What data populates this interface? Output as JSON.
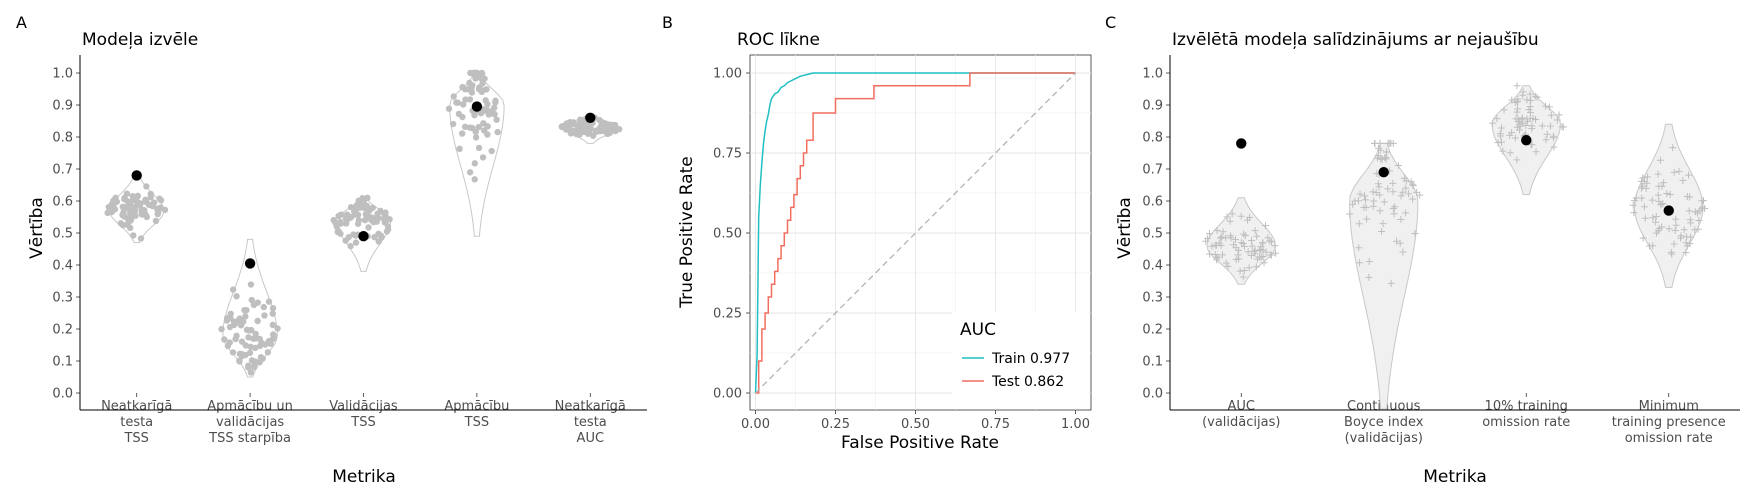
{
  "chart_data": [
    {
      "panel": "A",
      "type": "scatter",
      "title": "Modeļa izvēle",
      "xlabel": "Metrika",
      "ylabel": "Vērtība",
      "ylim": [
        0,
        1
      ],
      "yticks": [
        "0.0",
        "0.1",
        "0.2",
        "0.3",
        "0.4",
        "0.5",
        "0.6",
        "0.7",
        "0.8",
        "0.9",
        "1.0"
      ],
      "grid": false,
      "categories": [
        [
          "Neatkarīgā",
          "testa",
          "TSS"
        ],
        [
          "Apmācību un",
          "validācijas",
          "TSS starpība"
        ],
        [
          "Validācijas",
          "TSS"
        ],
        [
          "Apmācību",
          "TSS"
        ],
        [
          "Neatkarīgā",
          "testa",
          "AUC"
        ]
      ],
      "distributions": [
        {
          "min": 0.47,
          "max": 0.68,
          "center": 0.57
        },
        {
          "min": 0.05,
          "max": 0.48,
          "center": 0.18
        },
        {
          "min": 0.38,
          "max": 0.61,
          "center": 0.54
        },
        {
          "min": 0.49,
          "max": 1.0,
          "center": 0.9
        },
        {
          "min": 0.78,
          "max": 0.87,
          "center": 0.83
        }
      ],
      "selected_values": [
        0.68,
        0.405,
        0.49,
        0.895,
        0.86
      ],
      "point_color": "#bfbfbf",
      "selected_color": "#000000"
    },
    {
      "panel": "B",
      "type": "line",
      "title": "ROC līkne",
      "xlabel": "False Positive Rate",
      "ylabel": "True Positive Rate",
      "xlim": [
        0,
        1
      ],
      "ylim": [
        0,
        1
      ],
      "xticks": [
        "0.00",
        "0.25",
        "0.50",
        "0.75",
        "1.00"
      ],
      "yticks": [
        "0.00",
        "0.25",
        "0.50",
        "0.75",
        "1.00"
      ],
      "grid": true,
      "legend_title": "AUC",
      "legend_position": "bottom-right",
      "series": [
        {
          "name": "Train 0.977",
          "color": "#1fbfc4",
          "x": [
            0,
            0.005,
            0.01,
            0.015,
            0.02,
            0.025,
            0.03,
            0.035,
            0.04,
            0.045,
            0.05,
            0.06,
            0.07,
            0.08,
            0.09,
            0.1,
            0.11,
            0.12,
            0.13,
            0.14,
            0.16,
            0.18,
            0.2,
            0.3,
            0.5,
            0.7,
            1.0
          ],
          "y": [
            0,
            0.12,
            0.55,
            0.65,
            0.72,
            0.78,
            0.82,
            0.85,
            0.87,
            0.9,
            0.92,
            0.935,
            0.94,
            0.955,
            0.96,
            0.97,
            0.975,
            0.98,
            0.985,
            0.99,
            0.995,
            1.0,
            1.0,
            1.0,
            1.0,
            1.0,
            1.0
          ]
        },
        {
          "name": "Test 0.862",
          "color": "#f26d5f",
          "x": [
            0,
            0.01,
            0.01,
            0.02,
            0.02,
            0.03,
            0.03,
            0.04,
            0.04,
            0.05,
            0.05,
            0.06,
            0.06,
            0.07,
            0.07,
            0.08,
            0.08,
            0.09,
            0.09,
            0.1,
            0.1,
            0.11,
            0.11,
            0.12,
            0.12,
            0.13,
            0.13,
            0.14,
            0.14,
            0.15,
            0.15,
            0.16,
            0.16,
            0.18,
            0.18,
            0.25,
            0.25,
            0.37,
            0.37,
            0.67,
            0.67,
            1.0
          ],
          "y": [
            0,
            0,
            0.1,
            0.1,
            0.2,
            0.2,
            0.25,
            0.25,
            0.3,
            0.3,
            0.34,
            0.34,
            0.38,
            0.38,
            0.42,
            0.42,
            0.46,
            0.46,
            0.5,
            0.5,
            0.54,
            0.54,
            0.58,
            0.58,
            0.62,
            0.62,
            0.67,
            0.67,
            0.71,
            0.71,
            0.75,
            0.75,
            0.79,
            0.79,
            0.875,
            0.875,
            0.92,
            0.92,
            0.96,
            0.96,
            1.0,
            1.0
          ]
        },
        {
          "name": "",
          "color": "#b3b3b3",
          "dash": true,
          "x": [
            0,
            1
          ],
          "y": [
            0,
            1
          ]
        }
      ]
    },
    {
      "panel": "C",
      "type": "scatter",
      "title": "Izvēlētā modeļa salīdzinājums ar nejaušību",
      "xlabel": "Metrika",
      "ylabel": "Vērtība",
      "ylim": [
        0,
        1
      ],
      "yticks": [
        "0.0",
        "0.1",
        "0.2",
        "0.3",
        "0.4",
        "0.5",
        "0.6",
        "0.7",
        "0.8",
        "0.9",
        "1.0"
      ],
      "grid": false,
      "categories": [
        [
          "AUC",
          "(validācijas)"
        ],
        [
          "Continuous",
          "Boyce index",
          "(validācijas)"
        ],
        [
          "10% training",
          "omission rate"
        ],
        [
          "Minimum",
          "training presence",
          "omission rate"
        ]
      ],
      "distributions": [
        {
          "min": 0.34,
          "max": 0.61,
          "center": 0.46
        },
        {
          "min": -0.05,
          "max": 0.78,
          "center": 0.6
        },
        {
          "min": 0.62,
          "max": 0.96,
          "center": 0.84
        },
        {
          "min": 0.33,
          "max": 0.84,
          "center": 0.58
        }
      ],
      "selected_values": [
        0.78,
        0.69,
        0.79,
        0.57
      ],
      "point_color": "#bfbfbf",
      "violin_fill": "#f0f0f0",
      "selected_color": "#000000"
    }
  ]
}
